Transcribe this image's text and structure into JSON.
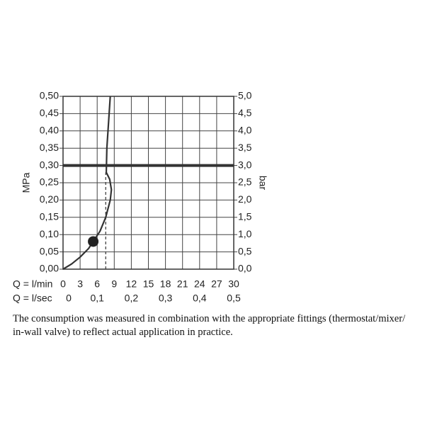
{
  "chart_data": {
    "type": "line",
    "y_label": "MPa",
    "y2_label": "bar",
    "x_label": "Q = l/min",
    "x2_label": "Q = l/sec",
    "xlim": [
      0,
      30
    ],
    "xticks": [
      0,
      3,
      6,
      9,
      12,
      15,
      18,
      21,
      24,
      27,
      30
    ],
    "x2lim": [
      0,
      0.5
    ],
    "x2ticks": [
      0,
      {
        "value": 0.1,
        "label": "0,1"
      },
      {
        "value": 0.2,
        "label": "0,2"
      },
      {
        "value": 0.3,
        "label": "0,3"
      },
      {
        "value": 0.4,
        "label": "0,4"
      },
      {
        "value": 0.5,
        "label": "0,5"
      }
    ],
    "ylim": [
      0,
      0.5
    ],
    "yticks": [
      {
        "value": 0,
        "label": "0,00"
      },
      {
        "value": 0.05,
        "label": "0,05"
      },
      {
        "value": 0.1,
        "label": "0,10"
      },
      {
        "value": 0.15,
        "label": "0,15"
      },
      {
        "value": 0.2,
        "label": "0,20"
      },
      {
        "value": 0.25,
        "label": "0,25"
      },
      {
        "value": 0.3,
        "label": "0,30"
      },
      {
        "value": 0.35,
        "label": "0,35"
      },
      {
        "value": 0.4,
        "label": "0,40"
      },
      {
        "value": 0.45,
        "label": "0,45"
      },
      {
        "value": 0.5,
        "label": "0,50"
      }
    ],
    "y2lim": [
      0,
      5
    ],
    "y2ticks": [
      {
        "value": 0,
        "label": "0,0"
      },
      {
        "value": 0.5,
        "label": "0,5"
      },
      {
        "value": 1,
        "label": "1,0"
      },
      {
        "value": 1.5,
        "label": "1,5"
      },
      {
        "value": 2,
        "label": "2,0"
      },
      {
        "value": 2.5,
        "label": "2,5"
      },
      {
        "value": 3,
        "label": "3,0"
      },
      {
        "value": 3.5,
        "label": "3,5"
      },
      {
        "value": 4,
        "label": "4,0"
      },
      {
        "value": 4.5,
        "label": "4,5"
      },
      {
        "value": 5,
        "label": "5,0"
      }
    ],
    "grid": true,
    "series": [
      {
        "color": "#333333",
        "x": [
          0,
          1.5,
          3,
          4.5,
          5.3,
          6.5,
          7.5,
          8.3,
          8.5,
          8.2,
          7.6,
          7.7,
          7.9,
          8.1,
          8.3
        ],
        "values": [
          0,
          0.015,
          0.035,
          0.06,
          0.08,
          0.11,
          0.15,
          0.2,
          0.23,
          0.26,
          0.28,
          0.35,
          0.4,
          0.45,
          0.5
        ]
      }
    ],
    "marker": {
      "x": 5.3,
      "y": 0.08,
      "color": "#222222"
    },
    "hline": {
      "y": 0.3,
      "color": "#333333"
    },
    "vline": {
      "x": 7.5,
      "y_end": 0.28,
      "color": "#333333"
    },
    "caption": "The consumption was measured in combination with the appropriate fittings (thermostat/mixer/ in-wall valve) to reflect actual application in practice."
  }
}
